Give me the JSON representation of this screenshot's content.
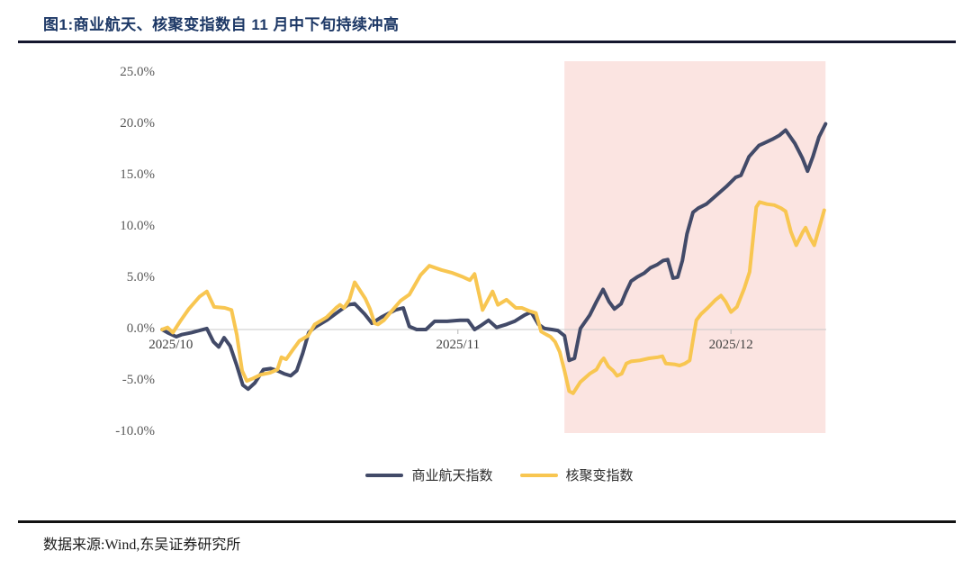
{
  "figure": {
    "title": "图1:商业航天、核聚变指数自 11 月中下旬持续冲高",
    "source_note": "数据来源:Wind,东吴证券研究所"
  },
  "chart_data": {
    "type": "line",
    "title": "商业航天、核聚变指数自 11 月中下旬持续冲高",
    "xlabel": "",
    "ylabel": "",
    "ylim": [
      -10.1,
      26.1
    ],
    "grid": "zero-line-only",
    "legend_position": "bottom",
    "y_ticks": [
      {
        "label": "25.0%",
        "value": 25
      },
      {
        "label": "20.0%",
        "value": 20
      },
      {
        "label": "15.0%",
        "value": 15
      },
      {
        "label": "10.0%",
        "value": 10
      },
      {
        "label": "5.0%",
        "value": 5
      },
      {
        "label": "0.0%",
        "value": 0
      },
      {
        "label": "-5.0%",
        "value": -5
      },
      {
        "label": "-10.0%",
        "value": -10
      }
    ],
    "x_ticks": [
      {
        "label": "2025/10",
        "pos": 1.6
      },
      {
        "label": "2025/11",
        "pos": 44.7
      },
      {
        "label": "2025/12",
        "pos": 85.7
      }
    ],
    "highlight_region": {
      "x_start_pct": 60.7,
      "x_end_pct": 99.9,
      "color": "#fbe4e1"
    },
    "zero_line_color": "#c9c9c9",
    "series": [
      {
        "name": "商业航天指数",
        "color": "#424a68",
        "points": [
          [
            0.3,
            0.0
          ],
          [
            1.1,
            -0.3
          ],
          [
            2.4,
            -0.7
          ],
          [
            3.2,
            -0.5
          ],
          [
            4.7,
            -0.3
          ],
          [
            5.9,
            -0.1
          ],
          [
            7.0,
            0.1
          ],
          [
            8.0,
            -1.2
          ],
          [
            8.8,
            -1.7
          ],
          [
            9.6,
            -0.8
          ],
          [
            10.5,
            -1.6
          ],
          [
            11.5,
            -3.5
          ],
          [
            12.4,
            -5.4
          ],
          [
            13.2,
            -5.8
          ],
          [
            14.2,
            -5.2
          ],
          [
            15.5,
            -3.9
          ],
          [
            16.6,
            -3.8
          ],
          [
            17.6,
            -4.0
          ],
          [
            18.6,
            -4.3
          ],
          [
            19.6,
            -4.5
          ],
          [
            20.5,
            -4.0
          ],
          [
            21.4,
            -2.3
          ],
          [
            22.3,
            -0.3
          ],
          [
            23.2,
            0.2
          ],
          [
            25.0,
            0.9
          ],
          [
            26.9,
            1.8
          ],
          [
            28.2,
            2.4
          ],
          [
            29.2,
            2.5
          ],
          [
            30.7,
            1.5
          ],
          [
            31.8,
            0.6
          ],
          [
            33.2,
            1.2
          ],
          [
            35.3,
            1.9
          ],
          [
            36.5,
            2.1
          ],
          [
            37.4,
            0.3
          ],
          [
            38.5,
            0.0
          ],
          [
            39.9,
            0.0
          ],
          [
            41.2,
            0.8
          ],
          [
            43.1,
            0.8
          ],
          [
            45.0,
            0.9
          ],
          [
            46.2,
            0.9
          ],
          [
            47.2,
            0.0
          ],
          [
            48.2,
            0.4
          ],
          [
            49.3,
            0.9
          ],
          [
            50.5,
            0.2
          ],
          [
            52.0,
            0.5
          ],
          [
            53.2,
            0.8
          ],
          [
            54.7,
            1.4
          ],
          [
            55.7,
            1.7
          ],
          [
            56.8,
            0.5
          ],
          [
            57.7,
            0.1
          ],
          [
            58.8,
            0.0
          ],
          [
            59.7,
            -0.1
          ],
          [
            60.7,
            -0.6
          ],
          [
            61.4,
            -3.0
          ],
          [
            62.2,
            -2.8
          ],
          [
            63.1,
            0.1
          ],
          [
            64.5,
            1.4
          ],
          [
            65.5,
            2.7
          ],
          [
            66.5,
            3.9
          ],
          [
            67.4,
            2.7
          ],
          [
            68.2,
            2.0
          ],
          [
            69.2,
            2.5
          ],
          [
            69.9,
            3.6
          ],
          [
            70.7,
            4.7
          ],
          [
            71.6,
            5.1
          ],
          [
            72.7,
            5.5
          ],
          [
            73.6,
            6.0
          ],
          [
            74.6,
            6.3
          ],
          [
            75.5,
            6.7
          ],
          [
            76.2,
            6.8
          ],
          [
            77.0,
            5.0
          ],
          [
            77.7,
            5.1
          ],
          [
            78.4,
            6.7
          ],
          [
            79.1,
            9.3
          ],
          [
            80.0,
            11.4
          ],
          [
            80.8,
            11.8
          ],
          [
            82.0,
            12.2
          ],
          [
            83.6,
            13.1
          ],
          [
            85.0,
            13.9
          ],
          [
            86.4,
            14.8
          ],
          [
            87.2,
            15.0
          ],
          [
            88.4,
            16.8
          ],
          [
            89.9,
            17.9
          ],
          [
            90.9,
            18.2
          ],
          [
            91.9,
            18.5
          ],
          [
            93.0,
            18.9
          ],
          [
            93.9,
            19.4
          ],
          [
            95.3,
            18.1
          ],
          [
            96.4,
            16.7
          ],
          [
            97.2,
            15.4
          ],
          [
            98.0,
            16.8
          ],
          [
            98.9,
            18.7
          ],
          [
            99.9,
            20.0
          ]
        ]
      },
      {
        "name": "核聚变指数",
        "color": "#f8c651",
        "points": [
          [
            0.3,
            0.0
          ],
          [
            1.1,
            0.2
          ],
          [
            1.9,
            -0.3
          ],
          [
            3.0,
            0.8
          ],
          [
            4.3,
            2.0
          ],
          [
            5.9,
            3.2
          ],
          [
            7.0,
            3.7
          ],
          [
            8.1,
            2.2
          ],
          [
            9.7,
            2.1
          ],
          [
            10.7,
            1.9
          ],
          [
            11.5,
            -0.5
          ],
          [
            12.3,
            -4.0
          ],
          [
            13.0,
            -5.0
          ],
          [
            13.8,
            -4.8
          ],
          [
            15.1,
            -4.4
          ],
          [
            16.5,
            -4.2
          ],
          [
            17.6,
            -3.9
          ],
          [
            18.2,
            -2.7
          ],
          [
            18.9,
            -2.9
          ],
          [
            20.0,
            -1.9
          ],
          [
            20.9,
            -1.1
          ],
          [
            22.2,
            -0.6
          ],
          [
            23.2,
            0.5
          ],
          [
            25.0,
            1.2
          ],
          [
            26.4,
            2.1
          ],
          [
            27.0,
            2.4
          ],
          [
            27.6,
            2.1
          ],
          [
            28.4,
            2.9
          ],
          [
            29.2,
            4.6
          ],
          [
            30.0,
            3.8
          ],
          [
            30.8,
            3.0
          ],
          [
            31.5,
            2.0
          ],
          [
            32.2,
            0.6
          ],
          [
            32.7,
            0.5
          ],
          [
            33.6,
            0.9
          ],
          [
            34.5,
            1.6
          ],
          [
            36.1,
            2.8
          ],
          [
            37.4,
            3.4
          ],
          [
            39.1,
            5.3
          ],
          [
            40.4,
            6.2
          ],
          [
            42.2,
            5.8
          ],
          [
            43.9,
            5.5
          ],
          [
            45.5,
            5.1
          ],
          [
            46.5,
            4.8
          ],
          [
            47.2,
            5.4
          ],
          [
            48.4,
            1.9
          ],
          [
            49.9,
            3.7
          ],
          [
            50.7,
            2.4
          ],
          [
            52.0,
            2.9
          ],
          [
            53.4,
            2.1
          ],
          [
            54.3,
            2.1
          ],
          [
            55.4,
            1.8
          ],
          [
            56.4,
            1.6
          ],
          [
            57.2,
            -0.2
          ],
          [
            58.0,
            -0.5
          ],
          [
            58.6,
            -0.7
          ],
          [
            59.3,
            -1.2
          ],
          [
            60.0,
            -2.2
          ],
          [
            60.7,
            -4.0
          ],
          [
            61.4,
            -6.0
          ],
          [
            62.0,
            -6.2
          ],
          [
            63.1,
            -5.1
          ],
          [
            64.5,
            -4.3
          ],
          [
            65.5,
            -3.9
          ],
          [
            66.2,
            -3.1
          ],
          [
            66.6,
            -2.8
          ],
          [
            67.3,
            -3.6
          ],
          [
            68.0,
            -4.0
          ],
          [
            68.6,
            -4.5
          ],
          [
            69.3,
            -4.3
          ],
          [
            70.0,
            -3.3
          ],
          [
            70.7,
            -3.1
          ],
          [
            72.0,
            -3.0
          ],
          [
            73.4,
            -2.8
          ],
          [
            74.7,
            -2.7
          ],
          [
            75.4,
            -2.6
          ],
          [
            75.9,
            -3.3
          ],
          [
            77.3,
            -3.4
          ],
          [
            78.0,
            -3.5
          ],
          [
            78.8,
            -3.3
          ],
          [
            79.5,
            -3.0
          ],
          [
            80.0,
            -1.0
          ],
          [
            80.5,
            0.9
          ],
          [
            81.2,
            1.5
          ],
          [
            82.2,
            2.1
          ],
          [
            83.4,
            2.9
          ],
          [
            84.2,
            3.3
          ],
          [
            84.9,
            2.7
          ],
          [
            85.7,
            1.7
          ],
          [
            86.6,
            2.2
          ],
          [
            87.7,
            4.0
          ],
          [
            88.5,
            5.6
          ],
          [
            89.5,
            11.9
          ],
          [
            90.0,
            12.4
          ],
          [
            91.1,
            12.2
          ],
          [
            92.2,
            12.1
          ],
          [
            93.2,
            11.8
          ],
          [
            93.9,
            11.5
          ],
          [
            94.7,
            9.5
          ],
          [
            95.5,
            8.2
          ],
          [
            96.5,
            9.5
          ],
          [
            96.9,
            9.9
          ],
          [
            97.6,
            8.9
          ],
          [
            98.2,
            8.2
          ],
          [
            99.1,
            10.2
          ],
          [
            99.7,
            11.6
          ]
        ]
      }
    ]
  }
}
